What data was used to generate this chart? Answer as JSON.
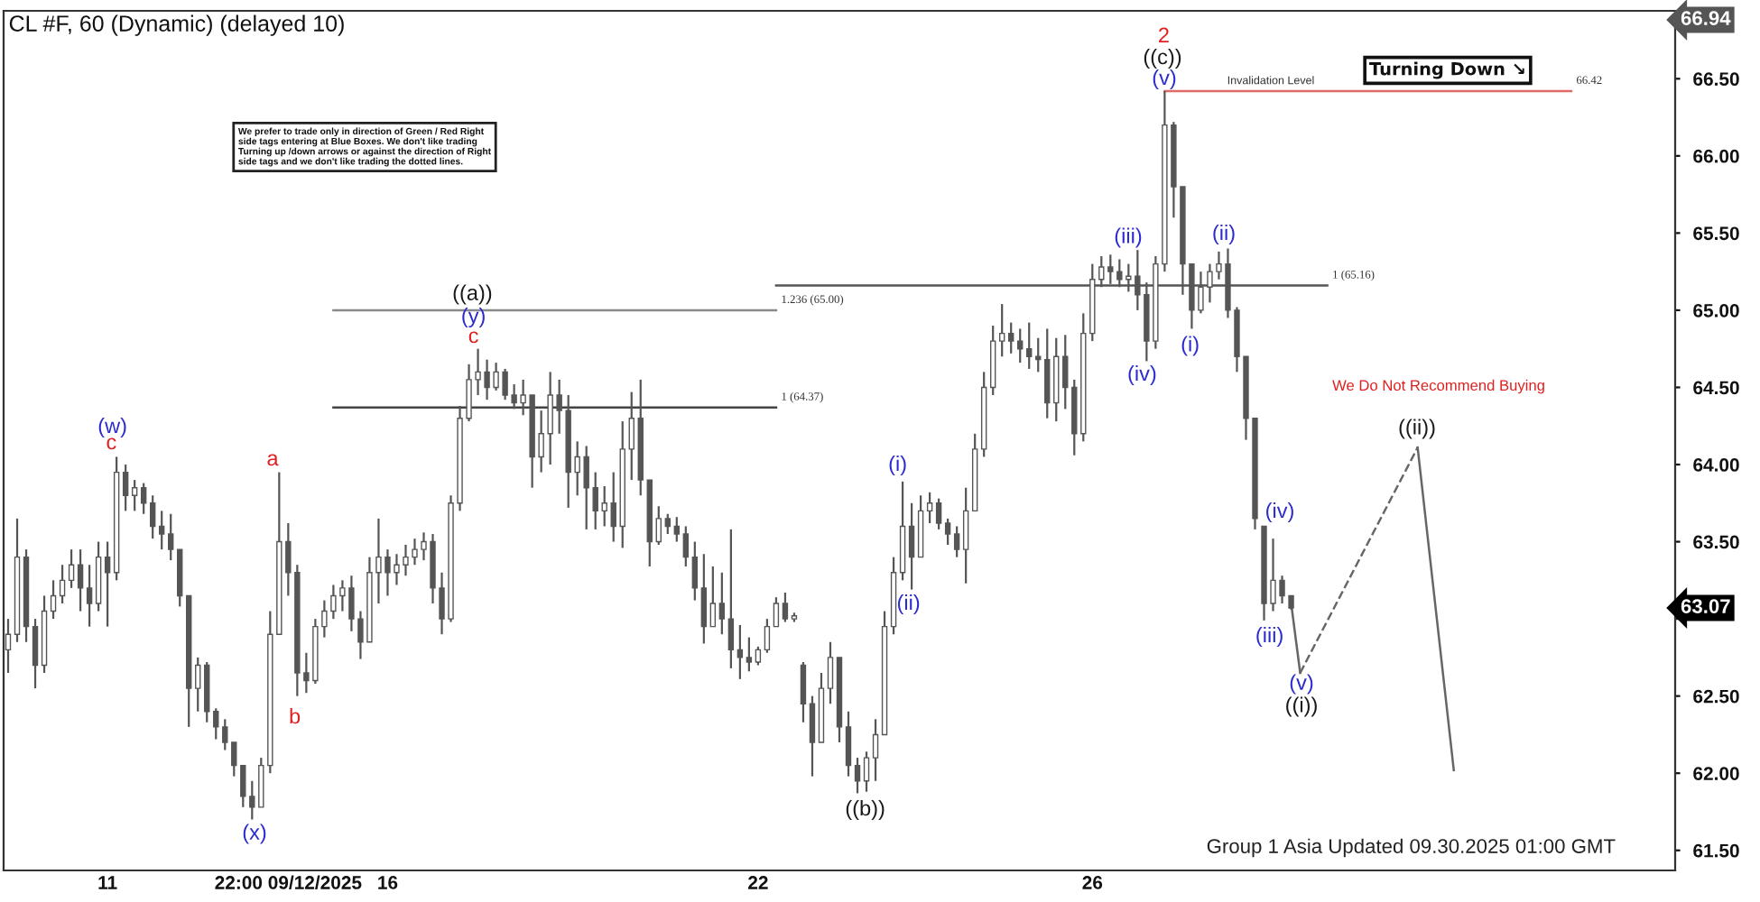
{
  "chart_data": {
    "type": "candlestick",
    "title": "CL #F, 60 (Dynamic) (delayed 10)",
    "color": "#555555",
    "line_style": "solid",
    "categories": [
      null,
      null,
      null,
      null,
      null,
      null,
      null,
      null,
      null,
      null,
      null,
      "11",
      null,
      null,
      null,
      null,
      null,
      null,
      null,
      null,
      null,
      null,
      null,
      null,
      null,
      null,
      null,
      null,
      null,
      null,
      null,
      "22:00 09/12/2025",
      null,
      null,
      null,
      null,
      null,
      null,
      null,
      null,
      null,
      null,
      "16",
      null,
      null,
      null,
      null,
      null,
      null,
      null,
      null,
      null,
      null,
      null,
      null,
      null,
      null,
      null,
      null,
      null,
      null,
      null,
      null,
      null,
      null,
      null,
      null,
      null,
      null,
      null,
      null,
      null,
      null,
      null,
      null,
      null,
      null,
      null,
      null,
      null,
      null,
      null,
      null,
      "22",
      null,
      null,
      null,
      null,
      null,
      null,
      null,
      null,
      null,
      null,
      null,
      null,
      null,
      null,
      null,
      null,
      null,
      null,
      null,
      null,
      null,
      null,
      null,
      null,
      null,
      null,
      null,
      null,
      null,
      null,
      null,
      null,
      null,
      null,
      null,
      null,
      "26",
      null,
      null,
      null,
      null,
      null,
      null,
      null,
      null,
      null,
      null,
      null,
      null,
      null,
      null,
      null,
      null,
      null,
      null,
      null,
      null,
      null,
      null,
      null,
      null,
      null,
      null,
      null,
      null,
      null,
      null,
      null,
      null,
      null,
      null,
      null,
      null,
      null,
      null,
      null,
      null,
      null,
      null,
      null,
      null,
      null,
      null,
      null,
      null,
      null,
      null,
      null,
      null,
      null,
      null,
      null,
      null,
      null,
      null,
      null,
      null,
      null,
      null,
      null,
      null
    ],
    "ohlc": [
      [
        62.8,
        63.0,
        62.65,
        62.9
      ],
      [
        62.9,
        63.65,
        62.85,
        63.4
      ],
      [
        63.4,
        63.45,
        62.85,
        62.95
      ],
      [
        62.95,
        63.0,
        62.55,
        62.7
      ],
      [
        62.7,
        63.15,
        62.65,
        63.05
      ],
      [
        63.05,
        63.25,
        63.0,
        63.15
      ],
      [
        63.15,
        63.35,
        63.1,
        63.25
      ],
      [
        63.25,
        63.45,
        63.2,
        63.35
      ],
      [
        63.35,
        63.45,
        63.05,
        63.2
      ],
      [
        63.2,
        63.35,
        62.95,
        63.1
      ],
      [
        63.1,
        63.5,
        63.05,
        63.4
      ],
      [
        63.4,
        63.5,
        62.95,
        63.3
      ],
      [
        63.3,
        64.05,
        63.25,
        63.95
      ],
      [
        63.95,
        64.0,
        63.7,
        63.8
      ],
      [
        63.8,
        63.9,
        63.7,
        63.85
      ],
      [
        63.85,
        63.88,
        63.68,
        63.75
      ],
      [
        63.75,
        63.8,
        63.52,
        63.6
      ],
      [
        63.6,
        63.7,
        63.45,
        63.55
      ],
      [
        63.55,
        63.68,
        63.38,
        63.45
      ],
      [
        63.45,
        63.45,
        63.08,
        63.15
      ],
      [
        63.15,
        63.15,
        62.3,
        62.55
      ],
      [
        62.55,
        62.75,
        62.4,
        62.7
      ],
      [
        62.7,
        62.72,
        62.33,
        62.4
      ],
      [
        62.4,
        62.42,
        62.22,
        62.3
      ],
      [
        62.3,
        62.35,
        62.15,
        62.2
      ],
      [
        62.2,
        62.2,
        61.98,
        62.05
      ],
      [
        62.05,
        62.05,
        61.78,
        61.85
      ],
      [
        61.85,
        61.95,
        61.7,
        61.78
      ],
      [
        61.78,
        62.1,
        61.78,
        62.05
      ],
      [
        62.05,
        63.05,
        62.0,
        62.9
      ],
      [
        62.9,
        63.95,
        62.9,
        63.5
      ],
      [
        63.5,
        63.62,
        63.15,
        63.3
      ],
      [
        63.3,
        63.35,
        62.5,
        62.65
      ],
      [
        62.65,
        62.78,
        62.52,
        62.6
      ],
      [
        62.6,
        63.0,
        62.58,
        62.95
      ],
      [
        62.95,
        63.12,
        62.88,
        63.05
      ],
      [
        63.05,
        63.22,
        63.0,
        63.15
      ],
      [
        63.15,
        63.25,
        63.05,
        63.2
      ],
      [
        63.2,
        63.28,
        62.92,
        63.0
      ],
      [
        63.0,
        63.05,
        62.74,
        62.85
      ],
      [
        62.85,
        63.4,
        62.85,
        63.3
      ],
      [
        63.3,
        63.65,
        63.1,
        63.4
      ],
      [
        63.4,
        63.45,
        63.15,
        63.3
      ],
      [
        63.3,
        63.42,
        63.22,
        63.35
      ],
      [
        63.35,
        63.48,
        63.28,
        63.4
      ],
      [
        63.4,
        63.52,
        63.35,
        63.45
      ],
      [
        63.45,
        63.56,
        63.38,
        63.5
      ],
      [
        63.5,
        63.55,
        63.1,
        63.2
      ],
      [
        63.2,
        63.3,
        62.9,
        63.0
      ],
      [
        63.0,
        63.8,
        62.98,
        63.75
      ],
      [
        63.75,
        64.38,
        63.7,
        64.3
      ],
      [
        64.3,
        64.65,
        64.28,
        64.55
      ],
      [
        64.55,
        64.75,
        64.45,
        64.6
      ],
      [
        64.6,
        64.68,
        64.42,
        64.5
      ],
      [
        64.5,
        64.66,
        64.48,
        64.6
      ],
      [
        64.6,
        64.62,
        64.42,
        64.45
      ],
      [
        64.45,
        64.52,
        64.36,
        64.4
      ],
      [
        64.4,
        64.55,
        64.32,
        64.45
      ],
      [
        64.45,
        64.45,
        63.85,
        64.05
      ],
      [
        64.05,
        64.35,
        63.95,
        64.2
      ],
      [
        64.2,
        64.6,
        64.0,
        64.45
      ],
      [
        64.45,
        64.55,
        64.2,
        64.35
      ],
      [
        64.35,
        64.45,
        63.72,
        63.95
      ],
      [
        63.95,
        64.15,
        63.8,
        64.05
      ],
      [
        64.05,
        64.12,
        63.58,
        63.85
      ],
      [
        63.85,
        63.95,
        63.58,
        63.7
      ],
      [
        63.7,
        63.86,
        63.6,
        63.75
      ],
      [
        63.75,
        63.95,
        63.5,
        63.6
      ],
      [
        63.6,
        64.28,
        63.46,
        64.1
      ],
      [
        64.1,
        64.47,
        63.9,
        64.3
      ],
      [
        64.3,
        64.55,
        63.8,
        63.9
      ],
      [
        63.9,
        63.9,
        63.34,
        63.5
      ],
      [
        63.5,
        63.73,
        63.48,
        63.65
      ],
      [
        63.65,
        63.68,
        63.55,
        63.6
      ],
      [
        63.6,
        63.66,
        63.5,
        63.55
      ],
      [
        63.55,
        63.6,
        63.34,
        63.4
      ],
      [
        63.4,
        63.5,
        63.12,
        63.2
      ],
      [
        63.2,
        63.42,
        62.84,
        62.95
      ],
      [
        62.95,
        63.34,
        62.95,
        63.1
      ],
      [
        63.1,
        63.3,
        62.9,
        63.0
      ],
      [
        63.0,
        63.58,
        62.68,
        62.8
      ],
      [
        62.8,
        62.96,
        62.61,
        62.75
      ],
      [
        62.75,
        62.88,
        62.66,
        62.72
      ],
      [
        62.72,
        62.82,
        62.7,
        62.8
      ],
      [
        62.8,
        63.0,
        62.78,
        62.95
      ],
      [
        62.95,
        63.14,
        62.95,
        63.1
      ],
      [
        63.1,
        63.17,
        62.98,
        63.0
      ],
      [
        63.0,
        63.04,
        62.98,
        63.02
      ],
      [
        62.7,
        62.72,
        62.33,
        62.45
      ],
      [
        62.45,
        62.5,
        61.98,
        62.2
      ],
      [
        62.2,
        62.65,
        62.2,
        62.55
      ],
      [
        62.55,
        62.85,
        62.45,
        62.75
      ],
      [
        62.75,
        62.75,
        62.2,
        62.3
      ],
      [
        62.3,
        62.4,
        61.98,
        62.05
      ],
      [
        62.05,
        62.1,
        61.87,
        61.95
      ],
      [
        61.95,
        62.14,
        61.88,
        62.1
      ],
      [
        62.1,
        62.35,
        61.95,
        62.25
      ],
      [
        62.25,
        63.05,
        62.25,
        62.95
      ],
      [
        62.95,
        63.4,
        62.9,
        63.3
      ],
      [
        63.3,
        63.89,
        63.25,
        63.6
      ],
      [
        63.6,
        63.75,
        63.19,
        63.4
      ],
      [
        63.4,
        63.8,
        63.4,
        63.7
      ],
      [
        63.7,
        63.82,
        63.62,
        63.75
      ],
      [
        63.75,
        63.78,
        63.58,
        63.62
      ],
      [
        63.62,
        63.65,
        63.48,
        63.55
      ],
      [
        63.55,
        63.6,
        63.4,
        63.45
      ],
      [
        63.45,
        63.85,
        63.23,
        63.7
      ],
      [
        63.7,
        64.2,
        63.7,
        64.1
      ],
      [
        64.1,
        64.6,
        64.05,
        64.5
      ],
      [
        64.5,
        64.9,
        64.45,
        64.8
      ],
      [
        64.8,
        65.04,
        64.7,
        64.85
      ],
      [
        64.85,
        64.92,
        64.72,
        64.8
      ],
      [
        64.8,
        64.88,
        64.66,
        64.75
      ],
      [
        64.75,
        64.92,
        64.62,
        64.7
      ],
      [
        64.7,
        64.82,
        64.6,
        64.68
      ],
      [
        64.68,
        64.88,
        64.3,
        64.4
      ],
      [
        64.4,
        64.82,
        64.28,
        64.7
      ],
      [
        64.7,
        64.84,
        64.36,
        64.5
      ],
      [
        64.5,
        64.55,
        64.06,
        64.2
      ],
      [
        64.2,
        64.98,
        64.15,
        64.85
      ],
      [
        64.85,
        65.3,
        64.8,
        65.2
      ],
      [
        65.2,
        65.35,
        65.15,
        65.28
      ],
      [
        65.28,
        65.36,
        65.17,
        65.25
      ],
      [
        65.25,
        65.33,
        65.15,
        65.2
      ],
      [
        65.2,
        65.3,
        65.12,
        65.22
      ],
      [
        65.22,
        65.39,
        65.0,
        65.1
      ],
      [
        65.1,
        65.18,
        64.67,
        64.8
      ],
      [
        64.8,
        65.35,
        64.75,
        65.3
      ],
      [
        65.3,
        66.42,
        65.25,
        66.2
      ],
      [
        66.2,
        66.22,
        65.6,
        65.8
      ],
      [
        65.8,
        65.8,
        65.1,
        65.3
      ],
      [
        65.3,
        65.3,
        64.88,
        65.0
      ],
      [
        65.0,
        65.25,
        64.98,
        65.15
      ],
      [
        65.15,
        65.3,
        65.05,
        65.25
      ],
      [
        65.25,
        65.38,
        65.2,
        65.3
      ],
      [
        65.3,
        65.4,
        64.95,
        65.0
      ],
      [
        65.0,
        65.02,
        64.6,
        64.7
      ],
      [
        64.7,
        64.7,
        64.16,
        64.3
      ],
      [
        64.3,
        64.3,
        63.58,
        63.65
      ],
      [
        63.6,
        63.6,
        62.99,
        63.1
      ],
      [
        63.1,
        63.52,
        63.05,
        63.25
      ],
      [
        63.25,
        63.28,
        63.1,
        63.15
      ],
      [
        63.15,
        63.15,
        63.06,
        63.07
      ],
      null,
      null,
      null,
      null,
      null,
      null,
      null,
      null,
      null,
      null,
      null,
      null,
      null,
      null,
      null,
      null,
      null,
      null,
      null,
      null,
      null,
      null,
      null,
      null,
      null,
      null,
      null,
      null,
      null,
      null,
      null,
      null,
      null,
      null,
      null,
      null,
      null,
      null,
      null,
      null,
      null,
      null
    ],
    "series": [
      {
        "type": "line",
        "name": "1.236 (65.00)",
        "color": "#8a8a8a",
        "values": [
          null,
          null,
          null,
          null,
          null,
          null,
          null,
          null,
          null,
          null,
          null,
          null,
          null,
          null,
          null,
          null,
          null,
          null,
          null,
          null,
          null,
          null,
          null,
          null,
          null,
          null,
          null,
          null,
          null,
          null,
          null,
          null,
          null,
          null,
          null,
          null,
          65.0,
          null,
          null,
          null,
          null,
          null,
          null,
          null,
          null,
          null,
          null,
          null,
          null,
          null,
          null,
          null,
          null,
          null,
          null,
          null,
          null,
          null,
          null,
          null,
          null,
          null,
          null,
          null,
          null,
          null,
          null,
          null,
          null,
          null,
          null,
          null,
          null,
          null,
          null,
          null,
          null,
          null,
          null,
          null,
          null,
          null,
          null,
          null,
          null,
          65.0,
          null,
          null,
          null,
          null,
          null,
          null,
          null,
          null,
          null,
          null,
          null,
          null,
          null,
          null,
          null,
          null,
          null,
          null,
          null,
          null,
          null,
          null,
          null,
          null,
          null,
          null,
          null,
          null,
          null,
          null,
          null,
          null,
          null,
          null,
          null,
          null,
          null,
          null,
          null,
          null,
          null,
          null,
          null,
          null,
          null,
          null,
          null,
          null,
          null,
          null,
          null,
          null,
          null,
          null,
          null,
          null,
          null,
          null,
          null,
          null,
          null,
          null,
          null,
          null,
          null,
          null,
          null,
          null,
          null,
          null,
          null,
          null,
          null,
          null,
          null,
          null,
          null,
          null,
          null,
          null,
          null,
          null,
          null,
          null,
          null,
          null,
          null,
          null,
          null,
          null,
          null,
          null,
          null,
          null,
          null,
          null,
          null,
          null,
          null
        ]
      },
      {
        "type": "line",
        "name": "1 (64.37)",
        "color": "#444444",
        "values": [
          null,
          null,
          null,
          null,
          null,
          null,
          null,
          null,
          null,
          null,
          null,
          null,
          null,
          null,
          null,
          null,
          null,
          null,
          null,
          null,
          null,
          null,
          null,
          null,
          null,
          null,
          null,
          null,
          null,
          null,
          null,
          null,
          null,
          null,
          null,
          null,
          64.37,
          null,
          null,
          null,
          null,
          null,
          null,
          null,
          null,
          null,
          null,
          null,
          null,
          null,
          null,
          null,
          null,
          null,
          null,
          null,
          null,
          null,
          null,
          null,
          null,
          null,
          null,
          null,
          null,
          null,
          null,
          null,
          null,
          null,
          null,
          null,
          null,
          null,
          null,
          null,
          null,
          null,
          null,
          null,
          null,
          null,
          null,
          null,
          null,
          64.37,
          null,
          null,
          null,
          null,
          null,
          null,
          null,
          null,
          null,
          null,
          null,
          null,
          null,
          null,
          null,
          null,
          null,
          null,
          null,
          null,
          null,
          null,
          null,
          null,
          null,
          null,
          null,
          null,
          null,
          null,
          null,
          null,
          null,
          null,
          null,
          null,
          null,
          null,
          null,
          null,
          null,
          null,
          null,
          null,
          null,
          null,
          null,
          null,
          null,
          null,
          null,
          null,
          null,
          null,
          null,
          null,
          null,
          null,
          null,
          null,
          null,
          null,
          null,
          null,
          null,
          null,
          null,
          null,
          null,
          null,
          null,
          null,
          null,
          null,
          null,
          null,
          null,
          null,
          null,
          null,
          null,
          null,
          null,
          null,
          null,
          null,
          null,
          null,
          null,
          null,
          null,
          null,
          null,
          null,
          null,
          null,
          null,
          null,
          null
        ]
      },
      {
        "type": "line",
        "name": "1 (65.16)",
        "color": "#555555",
        "values": [
          null,
          null,
          null,
          null,
          null,
          null,
          null,
          null,
          null,
          null,
          null,
          null,
          null,
          null,
          null,
          null,
          null,
          null,
          null,
          null,
          null,
          null,
          null,
          null,
          null,
          null,
          null,
          null,
          null,
          null,
          null,
          null,
          null,
          null,
          null,
          null,
          null,
          null,
          null,
          null,
          null,
          null,
          null,
          null,
          null,
          null,
          null,
          null,
          null,
          null,
          null,
          null,
          null,
          null,
          null,
          null,
          null,
          null,
          null,
          null,
          null,
          null,
          null,
          null,
          null,
          null,
          null,
          null,
          null,
          null,
          null,
          null,
          null,
          null,
          null,
          null,
          null,
          null,
          null,
          null,
          null,
          null,
          null,
          null,
          null,
          65.16,
          null,
          null,
          null,
          null,
          null,
          null,
          null,
          null,
          null,
          null,
          null,
          null,
          null,
          null,
          null,
          null,
          null,
          null,
          null,
          null,
          null,
          null,
          null,
          null,
          null,
          null,
          null,
          null,
          null,
          null,
          null,
          null,
          null,
          null,
          null,
          null,
          null,
          null,
          null,
          null,
          null,
          null,
          null,
          null,
          null,
          null,
          null,
          null,
          null,
          null,
          null,
          null,
          null,
          null,
          null,
          null,
          null,
          null,
          null,
          null,
          65.16,
          null,
          null,
          null,
          null,
          null,
          null,
          null,
          null,
          null,
          null,
          null,
          null,
          null,
          null,
          null,
          null,
          null,
          null,
          null,
          null,
          null,
          null,
          null,
          null,
          null,
          null,
          null,
          null,
          null,
          null,
          null,
          null,
          null,
          null,
          null,
          null,
          null,
          null
        ]
      },
      {
        "type": "line",
        "name": "66.42",
        "color": "#e06a6a",
        "values": [
          null,
          null,
          null,
          null,
          null,
          null,
          null,
          null,
          null,
          null,
          null,
          null,
          null,
          null,
          null,
          null,
          null,
          null,
          null,
          null,
          null,
          null,
          null,
          null,
          null,
          null,
          null,
          null,
          null,
          null,
          null,
          null,
          null,
          null,
          null,
          null,
          null,
          null,
          null,
          null,
          null,
          null,
          null,
          null,
          null,
          null,
          null,
          null,
          null,
          null,
          null,
          null,
          null,
          null,
          null,
          null,
          null,
          null,
          null,
          null,
          null,
          null,
          null,
          null,
          null,
          null,
          null,
          null,
          null,
          null,
          null,
          null,
          null,
          null,
          null,
          null,
          null,
          null,
          null,
          null,
          null,
          null,
          null,
          null,
          null,
          null,
          null,
          null,
          null,
          null,
          null,
          null,
          null,
          null,
          null,
          null,
          null,
          null,
          null,
          null,
          null,
          null,
          null,
          null,
          null,
          null,
          null,
          null,
          null,
          null,
          null,
          null,
          null,
          null,
          null,
          null,
          null,
          null,
          null,
          null,
          null,
          null,
          null,
          null,
          null,
          null,
          null,
          null,
          66.42,
          null,
          null,
          null,
          null,
          null,
          null,
          null,
          null,
          null,
          null,
          null,
          null,
          null,
          null,
          null,
          null,
          null,
          null,
          null,
          null,
          null,
          null,
          null,
          null,
          null,
          null,
          null,
          null,
          null,
          null,
          null,
          null,
          null,
          null,
          null,
          null,
          null,
          null,
          null,
          null,
          null,
          null,
          null,
          null,
          66.42,
          null,
          null,
          null,
          null,
          null,
          null,
          null,
          null,
          null,
          null,
          null
        ]
      },
      {
        "type": "line",
        "color": "#666666",
        "values": [
          null,
          null,
          null,
          null,
          null,
          null,
          null,
          null,
          null,
          null,
          null,
          null,
          null,
          null,
          null,
          null,
          null,
          null,
          null,
          null,
          null,
          null,
          null,
          null,
          null,
          null,
          null,
          null,
          null,
          null,
          null,
          null,
          null,
          null,
          null,
          null,
          null,
          null,
          null,
          null,
          null,
          null,
          null,
          null,
          null,
          null,
          null,
          null,
          null,
          null,
          null,
          null,
          null,
          null,
          null,
          null,
          null,
          null,
          null,
          null,
          null,
          null,
          null,
          null,
          null,
          null,
          null,
          null,
          null,
          null,
          null,
          null,
          null,
          null,
          null,
          null,
          null,
          null,
          null,
          null,
          null,
          null,
          null,
          null,
          null,
          null,
          null,
          null,
          null,
          null,
          null,
          null,
          null,
          null,
          null,
          null,
          null,
          null,
          null,
          null,
          null,
          null,
          null,
          null,
          null,
          null,
          null,
          null,
          null,
          null,
          null,
          null,
          null,
          null,
          null,
          null,
          null,
          null,
          null,
          null,
          null,
          null,
          null,
          null,
          null,
          null,
          null,
          null,
          null,
          null,
          null,
          null,
          null,
          null,
          null,
          null,
          null,
          null,
          null,
          null,
          null,
          null,
          63.1,
          62.65,
          null,
          null,
          null,
          null,
          null,
          null,
          null,
          null,
          null,
          null,
          null,
          null,
          null,
          null,
          null,
          null,
          null,
          null,
          null,
          null,
          null,
          null,
          null,
          null,
          null,
          null,
          null,
          null,
          null,
          null,
          null,
          null,
          null,
          null,
          null,
          null,
          null,
          null,
          null,
          null,
          null
        ]
      },
      {
        "type": "line",
        "color": "#666666",
        "line_style": "dashed",
        "values": [
          null,
          null,
          null,
          null,
          null,
          null,
          null,
          null,
          null,
          null,
          null,
          null,
          null,
          null,
          null,
          null,
          null,
          null,
          null,
          null,
          null,
          null,
          null,
          null,
          null,
          null,
          null,
          null,
          null,
          null,
          null,
          null,
          null,
          null,
          null,
          null,
          null,
          null,
          null,
          null,
          null,
          null,
          null,
          null,
          null,
          null,
          null,
          null,
          null,
          null,
          null,
          null,
          null,
          null,
          null,
          null,
          null,
          null,
          null,
          null,
          null,
          null,
          null,
          null,
          null,
          null,
          null,
          null,
          null,
          null,
          null,
          null,
          null,
          null,
          null,
          null,
          null,
          null,
          null,
          null,
          null,
          null,
          null,
          null,
          null,
          null,
          null,
          null,
          null,
          null,
          null,
          null,
          null,
          null,
          null,
          null,
          null,
          null,
          null,
          null,
          null,
          null,
          null,
          null,
          null,
          null,
          null,
          null,
          null,
          null,
          null,
          null,
          null,
          null,
          null,
          null,
          null,
          null,
          null,
          null,
          null,
          null,
          null,
          null,
          null,
          null,
          null,
          null,
          null,
          null,
          null,
          null,
          null,
          null,
          null,
          null,
          null,
          null,
          null,
          null,
          null,
          null,
          null,
          62.65,
          null,
          null,
          null,
          null,
          null,
          null,
          null,
          null,
          null,
          null,
          null,
          null,
          64.11,
          null,
          null,
          null,
          null,
          null,
          null,
          null,
          null,
          null,
          null,
          null,
          null,
          null,
          null,
          null,
          null,
          null,
          null,
          null,
          null,
          null,
          null,
          null,
          null,
          null,
          null,
          null,
          null
        ]
      },
      {
        "type": "line",
        "color": "#666666",
        "values": [
          null,
          null,
          null,
          null,
          null,
          null,
          null,
          null,
          null,
          null,
          null,
          null,
          null,
          null,
          null,
          null,
          null,
          null,
          null,
          null,
          null,
          null,
          null,
          null,
          null,
          null,
          null,
          null,
          null,
          null,
          null,
          null,
          null,
          null,
          null,
          null,
          null,
          null,
          null,
          null,
          null,
          null,
          null,
          null,
          null,
          null,
          null,
          null,
          null,
          null,
          null,
          null,
          null,
          null,
          null,
          null,
          null,
          null,
          null,
          null,
          null,
          null,
          null,
          null,
          null,
          null,
          null,
          null,
          null,
          null,
          null,
          null,
          null,
          null,
          null,
          null,
          null,
          null,
          null,
          null,
          null,
          null,
          null,
          null,
          null,
          null,
          null,
          null,
          null,
          null,
          null,
          null,
          null,
          null,
          null,
          null,
          null,
          null,
          null,
          null,
          null,
          null,
          null,
          null,
          null,
          null,
          null,
          null,
          null,
          null,
          null,
          null,
          null,
          null,
          null,
          null,
          null,
          null,
          null,
          null,
          null,
          null,
          null,
          null,
          null,
          null,
          null,
          null,
          null,
          null,
          null,
          null,
          null,
          null,
          null,
          null,
          null,
          null,
          null,
          null,
          null,
          null,
          null,
          null,
          null,
          null,
          null,
          null,
          null,
          null,
          null,
          null,
          null,
          null,
          null,
          null,
          64.11,
          null,
          null,
          null,
          62.02,
          null,
          null,
          null,
          null,
          null,
          null,
          null,
          null,
          null,
          null,
          null,
          null,
          null,
          null,
          null,
          null,
          null,
          null,
          null,
          null,
          null,
          null,
          null,
          null
        ]
      }
    ],
    "ylim": [
      61.37,
      66.94
    ],
    "yticks": [
      {
        "value": 61.5,
        "label": "61.50"
      },
      {
        "value": 62.0,
        "label": "62.00"
      },
      {
        "value": 62.5,
        "label": "62.50"
      },
      {
        "value": 63.0,
        "label": null
      },
      {
        "value": 63.5,
        "label": "63.50"
      },
      {
        "value": 64.0,
        "label": "64.00"
      },
      {
        "value": 64.5,
        "label": "64.50"
      },
      {
        "value": 65.0,
        "label": "65.00"
      },
      {
        "value": 65.5,
        "label": "65.50"
      },
      {
        "value": 66.0,
        "label": "66.00"
      },
      {
        "value": 66.5,
        "label": "66.50"
      }
    ],
    "annotations": [
      "We prefer to trade only in direction of Green / Red Right\nside tags entering at Blue Boxes. We don't like trading\nTurning up /down arrows or against the direction of Right\nside tags and we don't like trading the dotted lines.",
      "Turning Down ↘",
      "We Do Not Recommend Buying",
      "Group 1 Asia Updated 09.30.2025 01:00 GMT",
      "Invalidation Level",
      "66.94",
      "63.07",
      "(w)",
      "c",
      "a",
      "b",
      "(x)",
      "((a))",
      "(y)",
      "c",
      "((b))",
      "(i)",
      "(ii)",
      "(iii)",
      "(iv)",
      "2",
      "((c))",
      "(v)",
      "(i)",
      "(ii)",
      "(iv)",
      "(iii)",
      "(v)",
      "((i))",
      "((ii))"
    ]
  }
}
